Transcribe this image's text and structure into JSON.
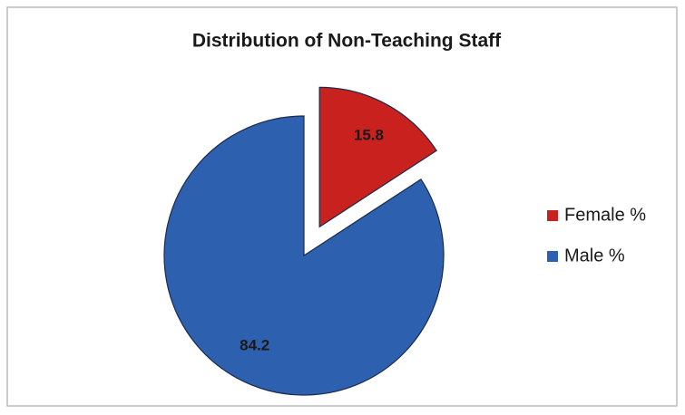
{
  "chart_data": {
    "type": "pie",
    "title": "Distribution of Non-Teaching Staff",
    "categories": [
      "Female %",
      "Male %"
    ],
    "values": [
      15.8,
      84.2
    ],
    "colors": [
      "#c9211e",
      "#2e60b0"
    ],
    "legend": "right"
  }
}
